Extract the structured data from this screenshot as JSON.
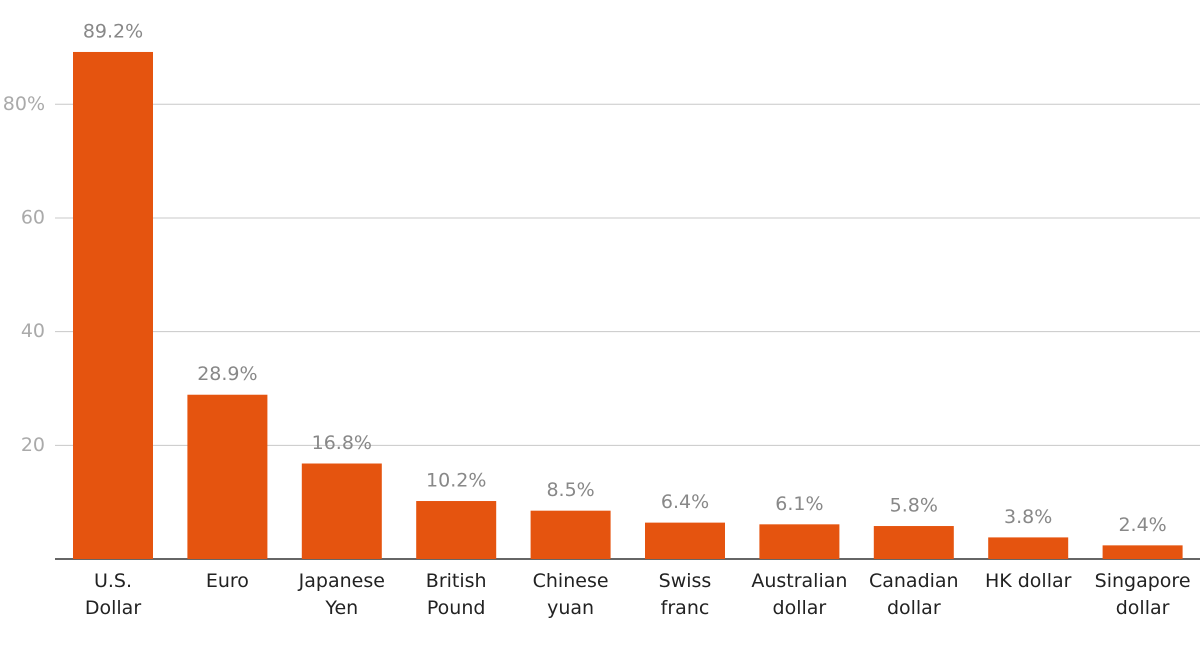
{
  "chart_data": {
    "type": "bar",
    "categories": [
      "U.S.\nDollar",
      "Euro",
      "Japanese\nYen",
      "British\nPound",
      "Chinese\nyuan",
      "Swiss\nfranc",
      "Australian\ndollar",
      "Canadian\ndollar",
      "HK dollar",
      "Singapore\ndollar"
    ],
    "values": [
      89.2,
      28.9,
      16.8,
      10.2,
      8.5,
      6.4,
      6.1,
      5.8,
      3.8,
      2.4
    ],
    "value_labels": [
      "89.2%",
      "28.9%",
      "16.8%",
      "10.2%",
      "8.5%",
      "6.4%",
      "6.1%",
      "5.8%",
      "3.8%",
      "2.4%"
    ],
    "color": "#e5540f",
    "ylim": [
      0,
      95
    ],
    "yticks": [
      20,
      40,
      60,
      {
        "value": 80,
        "label": "80%"
      }
    ],
    "grid": true
  }
}
